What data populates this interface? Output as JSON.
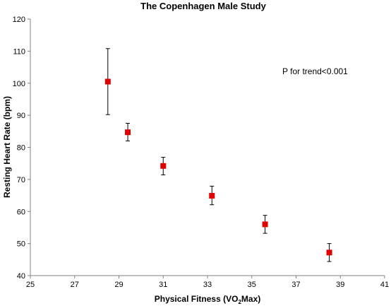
{
  "chart_data": {
    "type": "scatter",
    "title": "The Copenhagen Male Study",
    "xlabel_main": "Physical Fitness (VO",
    "xlabel_sub": "2",
    "xlabel_end": "Max)",
    "ylabel": "Resting Heart Rate (bpm)",
    "xlim": [
      25,
      41
    ],
    "ylim": [
      40,
      120
    ],
    "x_ticks": [
      "25",
      "27",
      "29",
      "31",
      "33",
      "35",
      "37",
      "39",
      "41"
    ],
    "y_ticks": [
      "40",
      "50",
      "60",
      "70",
      "80",
      "90",
      "100",
      "110",
      "120"
    ],
    "annotation": "P for trend<0.001",
    "marker_color": "#e00000",
    "points": [
      {
        "x": 28.5,
        "y": 100.5,
        "low": 90.2,
        "high": 110.8
      },
      {
        "x": 29.4,
        "y": 84.7,
        "low": 82.0,
        "high": 87.5
      },
      {
        "x": 31.0,
        "y": 74.2,
        "low": 71.4,
        "high": 76.9
      },
      {
        "x": 33.2,
        "y": 64.9,
        "low": 62.1,
        "high": 67.9
      },
      {
        "x": 35.6,
        "y": 56.0,
        "low": 53.2,
        "high": 58.8
      },
      {
        "x": 38.5,
        "y": 47.2,
        "low": 44.4,
        "high": 50.0
      }
    ],
    "grid": false
  }
}
